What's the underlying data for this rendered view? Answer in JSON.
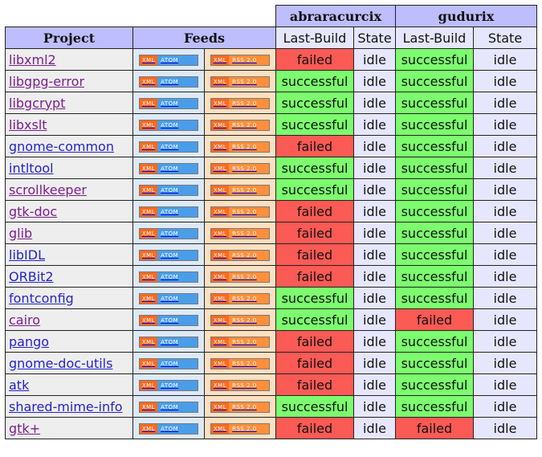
{
  "header": {
    "project": "Project",
    "feeds": "Feeds",
    "hosts": [
      {
        "name": "abraracurcix",
        "last_build": "Last-Build",
        "state": "State"
      },
      {
        "name": "gudurix",
        "last_build": "Last-Build",
        "state": "State"
      }
    ]
  },
  "feed_badges": {
    "xml": "XML",
    "atom": "ATOM",
    "rss": "RSS 2.0"
  },
  "colors": {
    "successful": "#7cfc6e",
    "failed": "#fb5a55",
    "header": "#bebeff",
    "subheader": "#e6e6ff"
  },
  "rows": [
    {
      "project": "libxml2",
      "visited": true,
      "h1_build": "failed",
      "h1_state": "idle",
      "h2_build": "successful",
      "h2_state": "idle"
    },
    {
      "project": "libgpg-error",
      "visited": true,
      "h1_build": "successful",
      "h1_state": "idle",
      "h2_build": "successful",
      "h2_state": "idle"
    },
    {
      "project": "libgcrypt",
      "visited": true,
      "h1_build": "successful",
      "h1_state": "idle",
      "h2_build": "successful",
      "h2_state": "idle"
    },
    {
      "project": "libxslt",
      "visited": true,
      "h1_build": "successful",
      "h1_state": "idle",
      "h2_build": "successful",
      "h2_state": "idle"
    },
    {
      "project": "gnome-common",
      "visited": false,
      "h1_build": "failed",
      "h1_state": "idle",
      "h2_build": "successful",
      "h2_state": "idle"
    },
    {
      "project": "intltool",
      "visited": false,
      "h1_build": "successful",
      "h1_state": "idle",
      "h2_build": "successful",
      "h2_state": "idle"
    },
    {
      "project": "scrollkeeper",
      "visited": true,
      "h1_build": "successful",
      "h1_state": "idle",
      "h2_build": "successful",
      "h2_state": "idle"
    },
    {
      "project": "gtk-doc",
      "visited": true,
      "h1_build": "failed",
      "h1_state": "idle",
      "h2_build": "successful",
      "h2_state": "idle"
    },
    {
      "project": "glib",
      "visited": true,
      "h1_build": "failed",
      "h1_state": "idle",
      "h2_build": "successful",
      "h2_state": "idle"
    },
    {
      "project": "libIDL",
      "visited": false,
      "h1_build": "failed",
      "h1_state": "idle",
      "h2_build": "successful",
      "h2_state": "idle"
    },
    {
      "project": "ORBit2",
      "visited": false,
      "h1_build": "failed",
      "h1_state": "idle",
      "h2_build": "successful",
      "h2_state": "idle"
    },
    {
      "project": "fontconfig",
      "visited": false,
      "h1_build": "successful",
      "h1_state": "idle",
      "h2_build": "successful",
      "h2_state": "idle"
    },
    {
      "project": "cairo",
      "visited": true,
      "h1_build": "successful",
      "h1_state": "idle",
      "h2_build": "failed",
      "h2_state": "idle"
    },
    {
      "project": "pango",
      "visited": false,
      "h1_build": "failed",
      "h1_state": "idle",
      "h2_build": "successful",
      "h2_state": "idle"
    },
    {
      "project": "gnome-doc-utils",
      "visited": false,
      "h1_build": "failed",
      "h1_state": "idle",
      "h2_build": "successful",
      "h2_state": "idle"
    },
    {
      "project": "atk",
      "visited": false,
      "h1_build": "failed",
      "h1_state": "idle",
      "h2_build": "successful",
      "h2_state": "idle"
    },
    {
      "project": "shared-mime-info",
      "visited": false,
      "h1_build": "successful",
      "h1_state": "idle",
      "h2_build": "successful",
      "h2_state": "idle"
    },
    {
      "project": "gtk+",
      "visited": true,
      "h1_build": "failed",
      "h1_state": "idle",
      "h2_build": "failed",
      "h2_state": "idle"
    }
  ]
}
